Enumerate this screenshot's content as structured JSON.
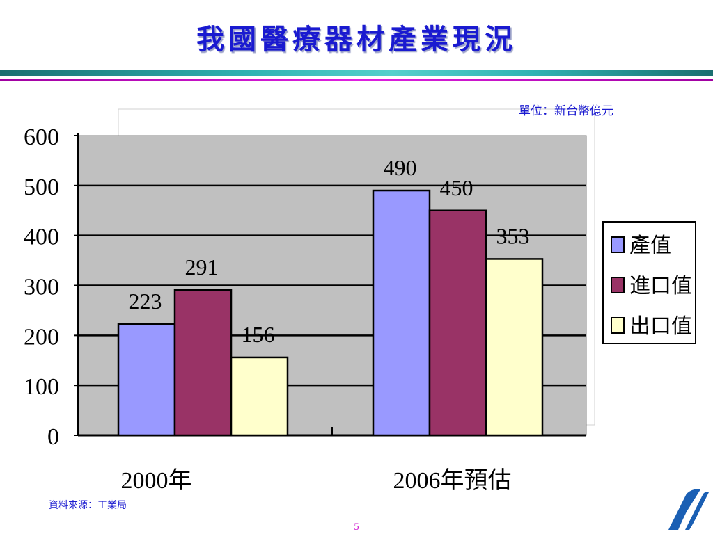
{
  "page": {
    "title": "我國醫療器材產業現況",
    "unit_label": "單位：新台幣億元",
    "source_label": "資料來源：工業局",
    "page_number": "5"
  },
  "colors": {
    "title": "#1a1ad0",
    "plot_background": "#c0c0c0",
    "series": [
      "#9999ff",
      "#993366",
      "#ffffcc"
    ]
  },
  "chart_data": {
    "type": "bar",
    "categories": [
      "2000年",
      "2006年預估"
    ],
    "series": [
      {
        "name": "產值",
        "values": [
          223,
          490
        ]
      },
      {
        "name": "進口值",
        "values": [
          291,
          450
        ]
      },
      {
        "name": "出口值",
        "values": [
          156,
          353
        ]
      }
    ],
    "ylim": [
      0,
      600
    ],
    "yticks": [
      0,
      100,
      200,
      300,
      400,
      500,
      600
    ],
    "grid": true,
    "legend": "right",
    "data_labels": true
  }
}
